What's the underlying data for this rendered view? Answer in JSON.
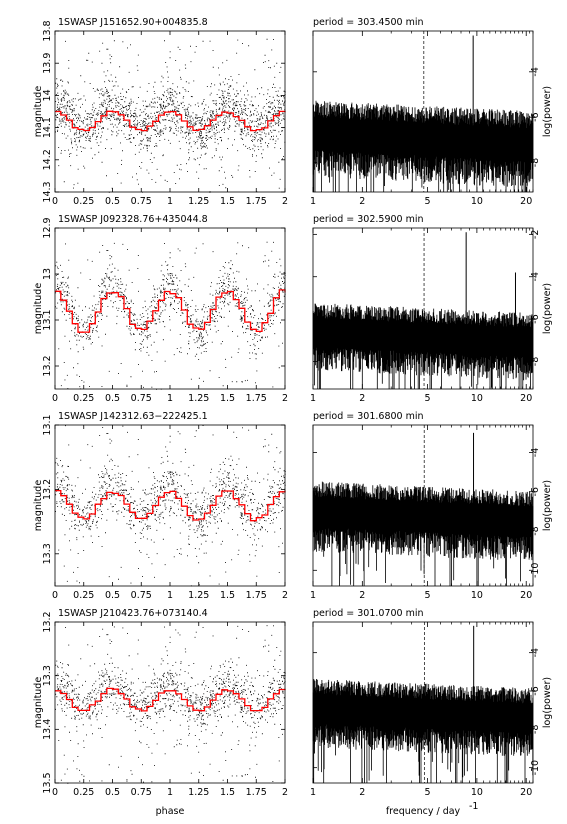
{
  "chart_data": [
    {
      "type": "scatter",
      "title": "1SWASP J151652.90+004835.8",
      "xlabel": "",
      "ylabel": "magnitude",
      "xlim": [
        0,
        2
      ],
      "ylim": [
        14.3,
        13.8
      ],
      "xticks": [
        "0",
        "0.25",
        "0.5",
        "0.75",
        "1",
        "1.25",
        "1.5",
        "1.75",
        "2"
      ],
      "yticks": [
        "13.8",
        "13.9",
        "14",
        "14.1",
        "14.2",
        "14.3"
      ],
      "series": [
        {
          "kind": "points",
          "color": "#000000",
          "mean": 14.07,
          "spread": 0.11,
          "amplitude": 0.035
        },
        {
          "kind": "binned-curve",
          "color": "#ff0000",
          "mean": 14.08,
          "amplitude": 0.03,
          "bins": 10
        }
      ]
    },
    {
      "type": "line",
      "title": "period = 303.4500 min",
      "xlabel": "",
      "ylabel": "log(power)",
      "x_scale": "log",
      "xlim": [
        1,
        22
      ],
      "ylim": [
        -9.3,
        -2.2
      ],
      "xticks": [
        "1",
        "2",
        "5",
        "10",
        "20"
      ],
      "yticks": [
        "-8",
        "-6",
        "-4"
      ],
      "marker_frequency": 4.745,
      "peak_frequency": 9.49,
      "peak_value": -2.4,
      "baseline": -6.6,
      "noise_amplitude": 1.7
    },
    {
      "type": "scatter",
      "title": "1SWASP J092328.76+435044.8",
      "xlabel": "",
      "ylabel": "magnitude",
      "xlim": [
        0,
        2
      ],
      "ylim": [
        13.25,
        12.9
      ],
      "xticks": [
        "0",
        "0.25",
        "0.5",
        "0.75",
        "1",
        "1.25",
        "1.5",
        "1.75",
        "2"
      ],
      "yticks": [
        "12.9",
        "13",
        "13.1",
        "13.2"
      ],
      "series": [
        {
          "kind": "points",
          "color": "#000000",
          "mean": 13.075,
          "spread": 0.065,
          "amplitude": 0.05
        },
        {
          "kind": "binned-curve",
          "color": "#ff0000",
          "mean": 13.08,
          "amplitude": 0.045,
          "bins": 10
        }
      ]
    },
    {
      "type": "line",
      "title": "period = 302.5900 min",
      "xlabel": "",
      "ylabel": "log(power)",
      "x_scale": "log",
      "xlim": [
        1,
        22
      ],
      "ylim": [
        -9.3,
        -1.7
      ],
      "xticks": [
        "1",
        "2",
        "5",
        "10",
        "20"
      ],
      "yticks": [
        "-8",
        "-6",
        "-4",
        "-2"
      ],
      "marker_frequency": 4.76,
      "peak_frequency": 8.6,
      "peak_value": -1.9,
      "second_peak_frequency": 17.2,
      "second_peak_value": -3.8,
      "baseline": -6.5,
      "noise_amplitude": 1.6
    },
    {
      "type": "scatter",
      "title": "1SWASP J142312.63−222425.1",
      "xlabel": "",
      "ylabel": "magnitude",
      "xlim": [
        0,
        2
      ],
      "ylim": [
        13.35,
        13.1
      ],
      "xticks": [
        "0",
        "0.25",
        "0.5",
        "0.75",
        "1",
        "1.25",
        "1.5",
        "1.75",
        "2"
      ],
      "yticks": [
        "13.1",
        "13.2",
        "13.3"
      ],
      "series": [
        {
          "kind": "points",
          "color": "#000000",
          "mean": 13.22,
          "spread": 0.055,
          "amplitude": 0.025
        },
        {
          "kind": "binned-curve",
          "color": "#ff0000",
          "mean": 13.225,
          "amplitude": 0.022,
          "bins": 10
        }
      ]
    },
    {
      "type": "line",
      "title": "period = 301.6800 min",
      "xlabel": "",
      "ylabel": "log(power)",
      "x_scale": "log",
      "xlim": [
        1,
        22
      ],
      "ylim": [
        -10.8,
        -2.6
      ],
      "xticks": [
        "1",
        "2",
        "5",
        "10",
        "20"
      ],
      "yticks": [
        "-10",
        "-8",
        "-6",
        "-4"
      ],
      "marker_frequency": 4.77,
      "peak_frequency": 9.54,
      "peak_value": -3.0,
      "baseline": -6.9,
      "noise_amplitude": 1.8
    },
    {
      "type": "scatter",
      "title": "1SWASP J210423.76+073140.4",
      "xlabel": "phase",
      "ylabel": "magnitude",
      "xlim": [
        0,
        2
      ],
      "ylim": [
        13.5,
        13.2
      ],
      "xticks": [
        "0",
        "0.25",
        "0.5",
        "0.75",
        "1",
        "1.25",
        "1.5",
        "1.75",
        "2"
      ],
      "yticks": [
        "13.2",
        "13.3",
        "13.4",
        "13.5"
      ],
      "series": [
        {
          "kind": "points",
          "color": "#000000",
          "mean": 13.34,
          "spread": 0.06,
          "amplitude": 0.02
        },
        {
          "kind": "binned-curve",
          "color": "#ff0000",
          "mean": 13.345,
          "amplitude": 0.02,
          "bins": 10
        }
      ]
    },
    {
      "type": "line",
      "title": "period = 301.0700 min",
      "xlabel": "frequency / day",
      "xlabel_superscript": "-1",
      "ylabel": "log(power)",
      "x_scale": "log",
      "xlim": [
        1,
        22
      ],
      "ylim": [
        -10.8,
        -2.4
      ],
      "xticks": [
        "1",
        "2",
        "5",
        "10",
        "20"
      ],
      "yticks": [
        "-10",
        "-8",
        "-6",
        "-4"
      ],
      "marker_frequency": 4.78,
      "peak_frequency": 9.56,
      "peak_value": -2.6,
      "baseline": -6.8,
      "noise_amplitude": 1.8
    }
  ]
}
